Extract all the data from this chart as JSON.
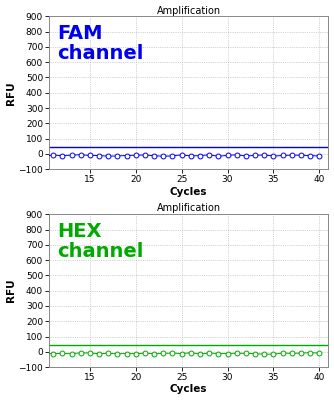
{
  "title": "Amplification",
  "xlabel": "Cycles",
  "ylabel": "RFU",
  "xlim": [
    10.5,
    41
  ],
  "ylim": [
    -100,
    900
  ],
  "yticks": [
    -100,
    0,
    100,
    200,
    300,
    400,
    500,
    600,
    700,
    800,
    900
  ],
  "xticks": [
    15,
    20,
    25,
    30,
    35,
    40
  ],
  "cycles_start": 10,
  "cycles_end": 40,
  "fam_color": "#0000EE",
  "hex_color": "#00AA00",
  "fam_label": "FAM\nchannel",
  "hex_label": "HEX\nchannel",
  "threshold_y": 42,
  "data_y": -8,
  "background_color": "#FFFFFF",
  "grid_color": "#AAAAAA",
  "title_fontsize": 7,
  "axis_label_fontsize": 7.5,
  "tick_fontsize": 6.5,
  "channel_label_fontsize": 14
}
